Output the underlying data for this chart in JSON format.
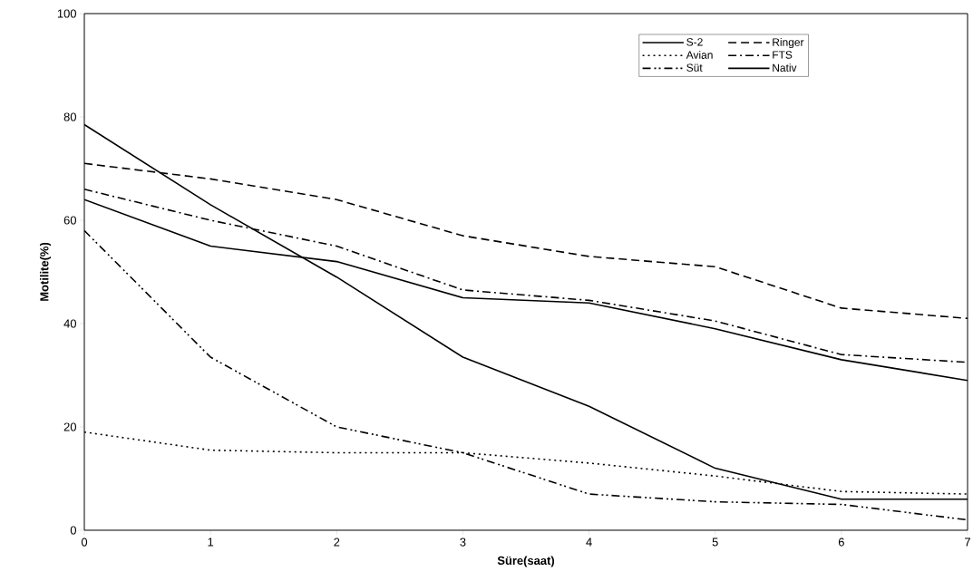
{
  "chart_data": {
    "type": "line",
    "xlabel": "Süre(saat)",
    "ylabel": "Motilite(%)",
    "x": [
      0,
      1,
      2,
      3,
      4,
      5,
      6,
      7
    ],
    "xlim": [
      0,
      7
    ],
    "xticks": [
      0,
      1,
      2,
      3,
      4,
      5,
      6,
      7
    ],
    "ylim": [
      0,
      100
    ],
    "yticks": [
      0,
      20,
      40,
      60,
      80,
      100
    ],
    "grid": false,
    "legend": "top right",
    "marker": "none",
    "series": [
      {
        "name": "S-2",
        "color": "#000000",
        "line_style": "solid",
        "values": [
          64,
          55,
          52,
          45,
          44,
          39,
          33,
          29
        ]
      },
      {
        "name": "Ringer",
        "color": "#000000",
        "line_style": "dashed",
        "values": [
          71,
          68,
          64,
          57,
          53,
          51,
          43,
          41
        ]
      },
      {
        "name": "Avian",
        "color": "#000000",
        "line_style": "dotted",
        "values": [
          19,
          15.5,
          15,
          15,
          13,
          10.5,
          7.5,
          7
        ]
      },
      {
        "name": "FTS",
        "color": "#000000",
        "line_style": "dashdot",
        "values": [
          66,
          60,
          55,
          46.5,
          44.5,
          40.5,
          34,
          32.5
        ]
      },
      {
        "name": "Süt",
        "color": "#000000",
        "line_style": "dashdotdot",
        "values": [
          58,
          33.5,
          20,
          15,
          7,
          5.5,
          5,
          2
        ]
      },
      {
        "name": "Nativ",
        "color": "#000000",
        "line_style": "solid",
        "values": [
          78.5,
          63,
          49,
          33.5,
          24,
          12,
          6,
          6
        ]
      }
    ]
  }
}
